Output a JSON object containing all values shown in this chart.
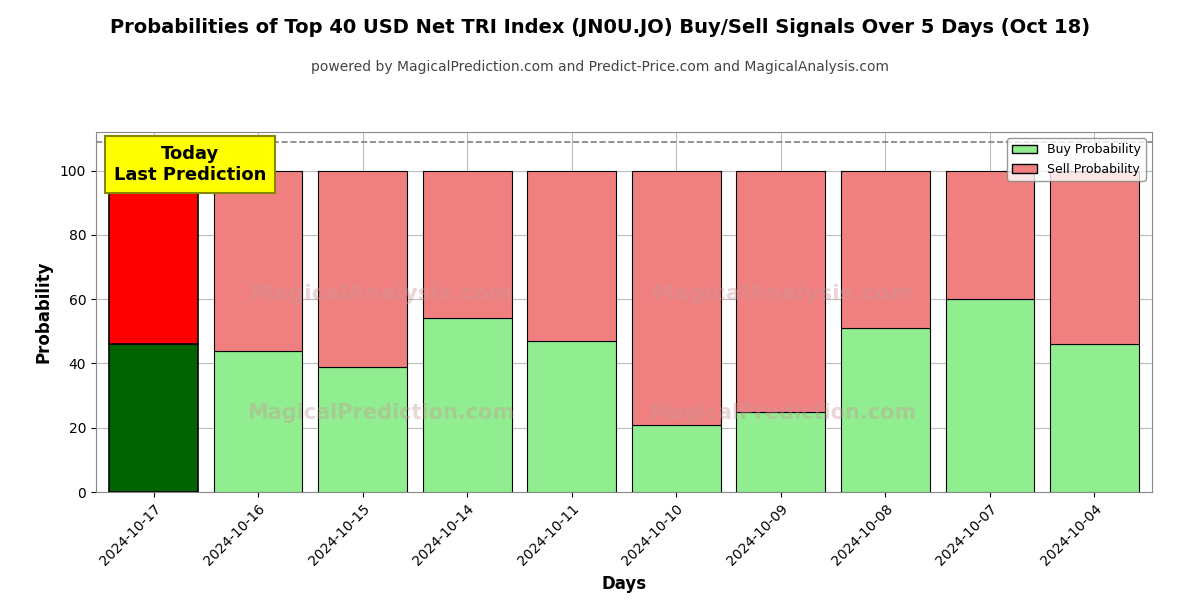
{
  "title": "Probabilities of Top 40 USD Net TRI Index (JN0U.JO) Buy/Sell Signals Over 5 Days (Oct 18)",
  "subtitle": "powered by MagicalPrediction.com and Predict-Price.com and MagicalAnalysis.com",
  "xlabel": "Days",
  "ylabel": "Probability",
  "dates": [
    "2024-10-17",
    "2024-10-16",
    "2024-10-15",
    "2024-10-14",
    "2024-10-11",
    "2024-10-10",
    "2024-10-09",
    "2024-10-08",
    "2024-10-07",
    "2024-10-04"
  ],
  "buy_probs": [
    46,
    44,
    39,
    54,
    47,
    21,
    25,
    51,
    60,
    46
  ],
  "sell_probs": [
    54,
    56,
    61,
    46,
    53,
    79,
    75,
    49,
    40,
    54
  ],
  "today_bar_buy_color": "#006400",
  "today_bar_sell_color": "#FF0000",
  "other_bar_buy_color": "#90EE90",
  "other_bar_sell_color": "#F08080",
  "bar_edge_color": "#000000",
  "today_annotation_text": "Today\nLast Prediction",
  "today_annotation_bg": "#FFFF00",
  "ylim": [
    0,
    112
  ],
  "dashed_line_y": 109,
  "legend_buy_label": "Buy Probability",
  "legend_sell_label": "Sell Probability",
  "background_color": "#ffffff",
  "grid_color": "#bbbbbb",
  "title_fontsize": 14,
  "subtitle_fontsize": 10,
  "axis_label_fontsize": 12,
  "tick_fontsize": 10,
  "bar_width": 0.85
}
